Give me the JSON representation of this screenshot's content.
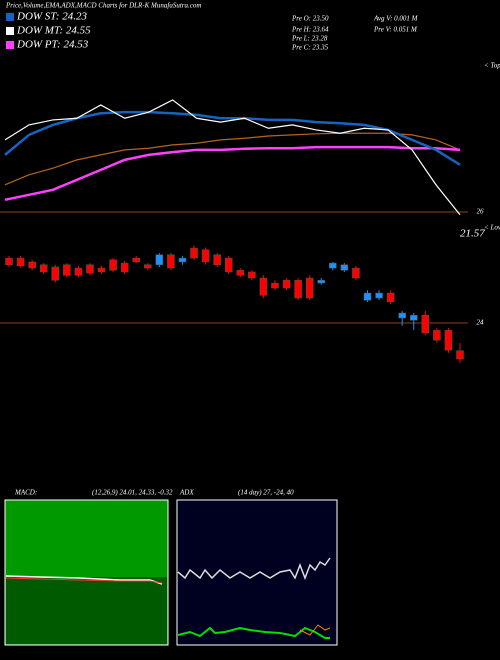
{
  "chart_data": {
    "type": "candlestick",
    "title": "Price,Volume,EMA,ADX,MACD Charts for DLR-K MunafaSutra.com",
    "legend": [
      {
        "label": "DOW ST: 24.23",
        "color": "#1565c0"
      },
      {
        "label": "DOW MT: 24.55",
        "color": "#ffffff"
      },
      {
        "label": "DOW PT: 24.53",
        "color": "#ff40ff"
      }
    ],
    "stats": [
      "Pre O: 23.50",
      "Pre H: 23.64",
      "Pre L: 23.28",
      "Pre C: 23.35",
      "Avg V: 0.001 M",
      "Pre V: 0.051 M"
    ],
    "tops_label": "< Tops",
    "lows_label": "< Lows",
    "last_label": "21.57",
    "ylim": [
      20.99,
      28.74
    ],
    "yticks": [
      26,
      24
    ],
    "up_color": "#1e90ff",
    "down_color": "#ff0000",
    "candles": [
      [
        25.17,
        25.21,
        25.01,
        25.05
      ],
      [
        25.17,
        25.21,
        25.0,
        25.03
      ],
      [
        25.1,
        25.14,
        24.95,
        24.99
      ],
      [
        25.05,
        25.08,
        24.88,
        24.92
      ],
      [
        25.01,
        25.05,
        24.73,
        24.77
      ],
      [
        25.05,
        25.08,
        24.82,
        24.86
      ],
      [
        24.99,
        25.03,
        24.82,
        24.86
      ],
      [
        25.05,
        25.08,
        24.86,
        24.9
      ],
      [
        24.99,
        25.03,
        24.88,
        24.92
      ],
      [
        25.14,
        25.17,
        24.92,
        24.95
      ],
      [
        25.08,
        25.12,
        24.88,
        24.92
      ],
      [
        25.17,
        25.21,
        25.08,
        25.1
      ],
      [
        25.05,
        25.08,
        24.95,
        24.99
      ],
      [
        25.05,
        25.26,
        25.01,
        25.23
      ],
      [
        25.23,
        25.26,
        24.95,
        24.99
      ],
      [
        25.1,
        25.21,
        25.05,
        25.17
      ],
      [
        25.35,
        25.4,
        25.14,
        25.17
      ],
      [
        25.32,
        25.36,
        25.05,
        25.1
      ],
      [
        25.23,
        25.26,
        25.01,
        25.05
      ],
      [
        25.17,
        25.21,
        24.88,
        24.92
      ],
      [
        24.95,
        24.99,
        24.82,
        24.86
      ],
      [
        24.92,
        24.95,
        24.77,
        24.81
      ],
      [
        24.81,
        24.86,
        24.45,
        24.5
      ],
      [
        24.72,
        24.77,
        24.59,
        24.63
      ],
      [
        24.77,
        24.81,
        24.59,
        24.63
      ],
      [
        24.77,
        24.81,
        24.41,
        24.45
      ],
      [
        24.81,
        24.86,
        24.41,
        24.45
      ],
      [
        24.72,
        24.81,
        24.69,
        24.77
      ],
      [
        24.99,
        25.1,
        24.95,
        25.08
      ],
      [
        24.95,
        25.08,
        24.92,
        25.05
      ],
      [
        24.99,
        25.03,
        24.77,
        24.81
      ],
      [
        24.41,
        24.59,
        24.38,
        24.54
      ],
      [
        24.45,
        24.59,
        24.41,
        24.54
      ],
      [
        24.54,
        24.59,
        24.34,
        24.38
      ],
      [
        24.09,
        24.22,
        23.95,
        24.18
      ],
      [
        24.05,
        24.18,
        23.87,
        24.14
      ],
      [
        24.14,
        24.22,
        23.78,
        23.82
      ],
      [
        23.87,
        23.91,
        23.64,
        23.69
      ],
      [
        23.87,
        23.91,
        23.46,
        23.51
      ],
      [
        23.5,
        23.64,
        23.28,
        23.35
      ]
    ],
    "lines": [
      {
        "color": "#b5651d",
        "values": [
          26.49,
          26.67,
          26.79,
          26.94,
          27.03,
          27.12,
          27.15,
          27.21,
          27.24,
          27.3,
          27.33,
          27.37,
          27.39,
          27.41,
          27.42,
          27.42,
          27.42,
          27.39,
          27.3,
          27.12
        ]
      },
      {
        "color": "#ff40ff",
        "values": [
          26.22,
          26.31,
          26.4,
          26.58,
          26.76,
          26.94,
          27.03,
          27.08,
          27.12,
          27.12,
          27.14,
          27.15,
          27.15,
          27.17,
          27.17,
          27.17,
          27.17,
          27.15,
          27.15,
          27.12
        ]
      },
      {
        "color": "#1565c0",
        "values": [
          27.03,
          27.39,
          27.57,
          27.69,
          27.78,
          27.8,
          27.8,
          27.78,
          27.75,
          27.69,
          27.69,
          27.66,
          27.66,
          27.62,
          27.6,
          27.57,
          27.48,
          27.3,
          27.12,
          26.85
        ]
      },
      {
        "color": "#ffffff",
        "values": [
          27.3,
          27.57,
          27.66,
          27.69,
          27.93,
          27.69,
          27.8,
          28.02,
          27.69,
          27.62,
          27.69,
          27.51,
          27.57,
          27.48,
          27.42,
          27.51,
          27.48,
          27.12,
          26.49,
          25.95
        ]
      }
    ],
    "macd_label": "MACD:",
    "macd_text": "(12,26,9) 24.01, 24.33, -0.32",
    "adx_label": "ADX",
    "adx_text": "(14 day) 27, -24, 40"
  }
}
